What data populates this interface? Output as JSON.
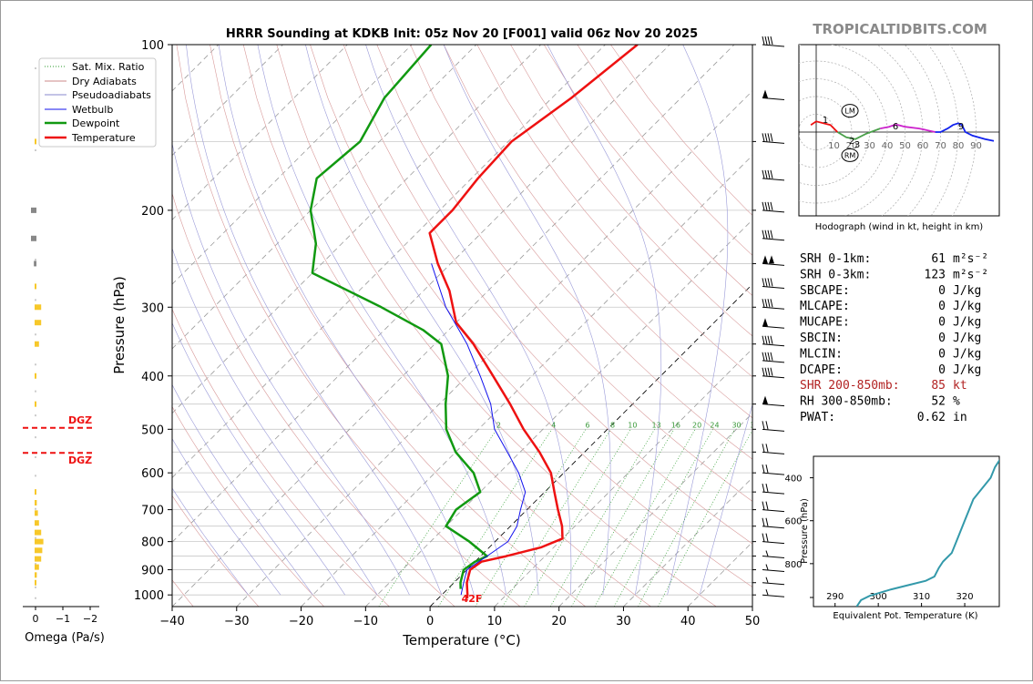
{
  "title": "HRRR Sounding at KDKB Init: 05z Nov 20 [F001] valid 06z Nov 20 2025",
  "brand": "TROPICALTIDBITS.COM",
  "skewt": {
    "xlabel": "Temperature (°C)",
    "ylabel": "Pressure (hPa)",
    "x_ticks": [
      -40,
      -30,
      -20,
      -10,
      0,
      10,
      20,
      30,
      40,
      50
    ],
    "x_tick_labels": [
      "−40",
      "−30",
      "−20",
      "−10",
      "0",
      "10",
      "20",
      "30",
      "40",
      "50"
    ],
    "p_ticks": [
      100,
      200,
      300,
      400,
      500,
      600,
      700,
      800,
      900,
      1000
    ],
    "xlim": [
      -40,
      50
    ],
    "plim": [
      1050,
      100
    ],
    "mixing_ratio_labels": [
      "2",
      "4",
      "6",
      "8",
      "10",
      "13",
      "16",
      "20",
      "24",
      "30",
      "36"
    ],
    "surface_label": "42F",
    "dgz_label_top": "DGZ",
    "dgz_label_bottom": "DGZ",
    "dgz_pressures": [
      497,
      552
    ],
    "legend": [
      "Sat. Mix. Ratio",
      "Dry Adiabats",
      "Pseudoadiabats",
      "Wetbulb",
      "Dewpoint",
      "Temperature"
    ]
  },
  "omega": {
    "xlabel": "Omega (Pa/s)",
    "ticks": [
      "0",
      "−1",
      "−2"
    ]
  },
  "hodograph": {
    "caption": "Hodograph (wind in kt, height in km)",
    "speed_labels": [
      "10",
      "20",
      "30",
      "40",
      "50",
      "60",
      "70",
      "80",
      "90"
    ],
    "height_labels": [
      "1",
      "2",
      "3",
      "6",
      "9"
    ],
    "lm_label": "LM",
    "rm_label": "RM"
  },
  "indices": [
    {
      "label": "SRH 0-1km:",
      "value": "61",
      "unit": "m²s⁻²",
      "highlight": false
    },
    {
      "label": "SRH 0-3km:",
      "value": "123",
      "unit": "m²s⁻²",
      "highlight": false
    },
    {
      "label": "SBCAPE:",
      "value": "0",
      "unit": "J/kg",
      "highlight": false
    },
    {
      "label": "MLCAPE:",
      "value": "0",
      "unit": "J/kg",
      "highlight": false
    },
    {
      "label": "MUCAPE:",
      "value": "0",
      "unit": "J/kg",
      "highlight": false
    },
    {
      "label": "SBCIN:",
      "value": "0",
      "unit": "J/kg",
      "highlight": false
    },
    {
      "label": "MLCIN:",
      "value": "0",
      "unit": "J/kg",
      "highlight": false
    },
    {
      "label": "DCAPE:",
      "value": "0",
      "unit": "J/kg",
      "highlight": false
    },
    {
      "label": "SHR 200-850mb:",
      "value": "85",
      "unit": "kt",
      "highlight": true
    },
    {
      "label": "RH 300-850mb:",
      "value": "52",
      "unit": "%",
      "highlight": false
    },
    {
      "label": "PWAT:",
      "value": "0.62",
      "unit": "in",
      "highlight": false
    }
  ],
  "theta_e": {
    "xlabel": "Equivalent Pot. Temperature (K)",
    "ylabel": "Pressure (hPa)",
    "x_ticks": [
      "290",
      "300",
      "310",
      "320"
    ],
    "y_ticks": [
      "400",
      "600",
      "800"
    ]
  },
  "colors": {
    "temperature": "#ee1111",
    "dewpoint": "#119911",
    "wetbulb": "#1111ee",
    "theta_e": "#3399aa",
    "dgz": "#ee1111",
    "omega_bar": "#f7c82a",
    "omega_neg": "#888888",
    "shear_text": "#b22222"
  },
  "chart_data": [
    {
      "type": "line",
      "title": "HRRR Sounding at KDKB Init: 05z Nov 20 [F001] valid 06z Nov 20 2025",
      "xlabel": "Temperature (°C)",
      "ylabel": "Pressure (hPa)",
      "xlim": [
        -40,
        50
      ],
      "ylim": [
        1050,
        100
      ],
      "y_scale": "log",
      "skew": "temperature isotherms skewed 45°",
      "grid": true,
      "legend_position": "top-left",
      "series": [
        {
          "name": "Temperature",
          "points": [
            [
              100,
              -55
            ],
            [
              125,
              -57
            ],
            [
              150,
              -59.5
            ],
            [
              175,
              -59
            ],
            [
              200,
              -58
            ],
            [
              220,
              -58
            ],
            [
              250,
              -52
            ],
            [
              280,
              -46
            ],
            [
              320,
              -40
            ],
            [
              350,
              -34
            ],
            [
              400,
              -26
            ],
            [
              450,
              -19
            ],
            [
              500,
              -13
            ],
            [
              550,
              -7
            ],
            [
              600,
              -2
            ],
            [
              650,
              1.5
            ],
            [
              700,
              4.8
            ],
            [
              750,
              8
            ],
            [
              790,
              10
            ],
            [
              820,
              8
            ],
            [
              850,
              4
            ],
            [
              870,
              1
            ],
            [
              900,
              0.5
            ],
            [
              950,
              2
            ],
            [
              1000,
              4
            ],
            [
              1015,
              4.5
            ]
          ]
        },
        {
          "name": "Dewpoint",
          "points": [
            [
              100,
              -87
            ],
            [
              125,
              -86
            ],
            [
              150,
              -83
            ],
            [
              175,
              -84
            ],
            [
              200,
              -80
            ],
            [
              230,
              -74
            ],
            [
              260,
              -70
            ],
            [
              300,
              -54
            ],
            [
              330,
              -44
            ],
            [
              350,
              -39
            ],
            [
              400,
              -33
            ],
            [
              450,
              -29
            ],
            [
              500,
              -25
            ],
            [
              550,
              -20
            ],
            [
              600,
              -14
            ],
            [
              650,
              -10
            ],
            [
              700,
              -11
            ],
            [
              750,
              -10
            ],
            [
              800,
              -4
            ],
            [
              850,
              1
            ],
            [
              870,
              0
            ],
            [
              900,
              -0.5
            ],
            [
              950,
              1
            ],
            [
              975,
              2
            ]
          ]
        },
        {
          "name": "Wetbulb",
          "points": [
            [
              250,
              -53
            ],
            [
              300,
              -44
            ],
            [
              350,
              -35
            ],
            [
              400,
              -28
            ],
            [
              450,
              -22
            ],
            [
              500,
              -17.5
            ],
            [
              550,
              -12
            ],
            [
              600,
              -7
            ],
            [
              650,
              -3
            ],
            [
              700,
              -1
            ],
            [
              750,
              1
            ],
            [
              800,
              2
            ],
            [
              850,
              1
            ],
            [
              900,
              0
            ],
            [
              950,
              1.5
            ],
            [
              1000,
              3
            ]
          ]
        }
      ]
    },
    {
      "type": "bar",
      "title": "",
      "xlabel": "Omega (Pa/s)",
      "ylabel": "",
      "orientation": "horizontal",
      "xlim": [
        0.5,
        -2.3
      ],
      "omega_by_pressure": [
        [
          150,
          0.02
        ],
        [
          200,
          0.25
        ],
        [
          225,
          0.25
        ],
        [
          250,
          0.12
        ],
        [
          275,
          -0.08
        ],
        [
          300,
          -0.3
        ],
        [
          320,
          -0.3
        ],
        [
          350,
          -0.2
        ],
        [
          400,
          0.0
        ],
        [
          450,
          0.02
        ],
        [
          650,
          -0.05
        ],
        [
          680,
          -0.1
        ],
        [
          710,
          -0.15
        ],
        [
          740,
          -0.2
        ],
        [
          770,
          -0.3
        ],
        [
          800,
          -0.4
        ],
        [
          830,
          -0.35
        ],
        [
          860,
          -0.3
        ],
        [
          890,
          -0.2
        ],
        [
          920,
          -0.1
        ],
        [
          950,
          -0.05
        ]
      ]
    },
    {
      "type": "line",
      "title": "Hodograph (wind in kt, height in km)",
      "units": "kt",
      "rings": [
        10,
        20,
        30,
        40,
        50,
        60,
        70,
        80,
        90
      ],
      "trace": [
        [
          -3,
          4
        ],
        [
          0,
          6
        ],
        [
          8,
          4
        ],
        [
          12,
          0
        ],
        [
          17,
          -3
        ],
        [
          22,
          -4
        ],
        [
          28,
          -1
        ],
        [
          36,
          2
        ],
        [
          41,
          3
        ],
        [
          44,
          4
        ],
        [
          46,
          4
        ],
        [
          50,
          3
        ],
        [
          58,
          2
        ],
        [
          67,
          0
        ],
        [
          70,
          0
        ],
        [
          74,
          2
        ],
        [
          77,
          4
        ],
        [
          80,
          5
        ],
        [
          82,
          4
        ],
        [
          84,
          0
        ],
        [
          88,
          -2
        ],
        [
          95,
          -4
        ],
        [
          100,
          -5
        ]
      ],
      "colored_segments": [
        "0-1 km red",
        "1-3 km red",
        "3-6 km green",
        "6-9 km magenta",
        "9+ km blue"
      ],
      "lm": [
        19,
        12
      ],
      "rm": [
        19,
        -13
      ]
    },
    {
      "type": "line",
      "title": "",
      "xlabel": "Equivalent Pot. Temperature (K)",
      "ylabel": "Pressure (hPa)",
      "xlim": [
        285,
        328
      ],
      "ylim": [
        1000,
        300
      ],
      "points": [
        [
          295,
          1000
        ],
        [
          296,
          970
        ],
        [
          298,
          950
        ],
        [
          303,
          920
        ],
        [
          307,
          900
        ],
        [
          311,
          880
        ],
        [
          313,
          860
        ],
        [
          314,
          820
        ],
        [
          315,
          790
        ],
        [
          317,
          750
        ],
        [
          318,
          700
        ],
        [
          319,
          650
        ],
        [
          320,
          600
        ],
        [
          321,
          550
        ],
        [
          322,
          500
        ],
        [
          324,
          450
        ],
        [
          326,
          400
        ],
        [
          327,
          350
        ],
        [
          328,
          320
        ],
        [
          330,
          300
        ]
      ]
    }
  ]
}
